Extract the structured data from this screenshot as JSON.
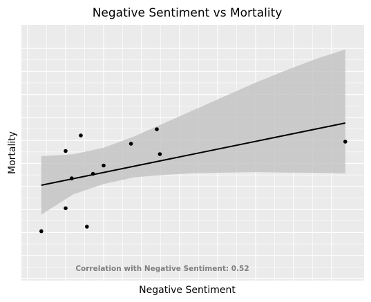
{
  "chart_data": {
    "type": "scatter",
    "title": "Negative Sentiment vs Mortality",
    "xlabel": "Negative Sentiment",
    "ylabel": "Mortality",
    "annotation": "Correlation with Negative Sentiment: 0.52",
    "xlim": [
      0,
      100
    ],
    "ylim": [
      0,
      100
    ],
    "grid": true,
    "legend": "none",
    "points": [
      {
        "x": 4.5,
        "y": 17.8
      },
      {
        "x": 12.5,
        "y": 28.9
      },
      {
        "x": 12.5,
        "y": 56.5
      },
      {
        "x": 14.5,
        "y": 43.3
      },
      {
        "x": 17.5,
        "y": 64.0
      },
      {
        "x": 19.5,
        "y": 20.0
      },
      {
        "x": 21.5,
        "y": 45.5
      },
      {
        "x": 25.0,
        "y": 49.5
      },
      {
        "x": 34.0,
        "y": 60.0
      },
      {
        "x": 42.5,
        "y": 67.0
      },
      {
        "x": 43.5,
        "y": 55.0
      },
      {
        "x": 104.5,
        "y": 61.0
      }
    ],
    "fit_line": {
      "x": [
        4.5,
        104.5
      ],
      "y": [
        40.0,
        70.0
      ]
    },
    "confidence_band": {
      "x": [
        4.5,
        15,
        25,
        35,
        45,
        55,
        65,
        75,
        85,
        95,
        104.5
      ],
      "upper": [
        54.0,
        54.9,
        58.1,
        63.5,
        70.0,
        76.5,
        83.0,
        89.5,
        95.4,
        101.0,
        105.5
      ],
      "lower": [
        25.8,
        35.6,
        40.6,
        43.8,
        45.0,
        45.8,
        46.1,
        46.3,
        46.1,
        46.0,
        45.7
      ]
    }
  },
  "colors": {
    "panel_background": "#ebebeb",
    "grid_line": "#ffffff",
    "point": "#000000",
    "fit_line": "#000000",
    "band_fill": "#c2c2c2",
    "annotation": "#7f7f7f"
  }
}
